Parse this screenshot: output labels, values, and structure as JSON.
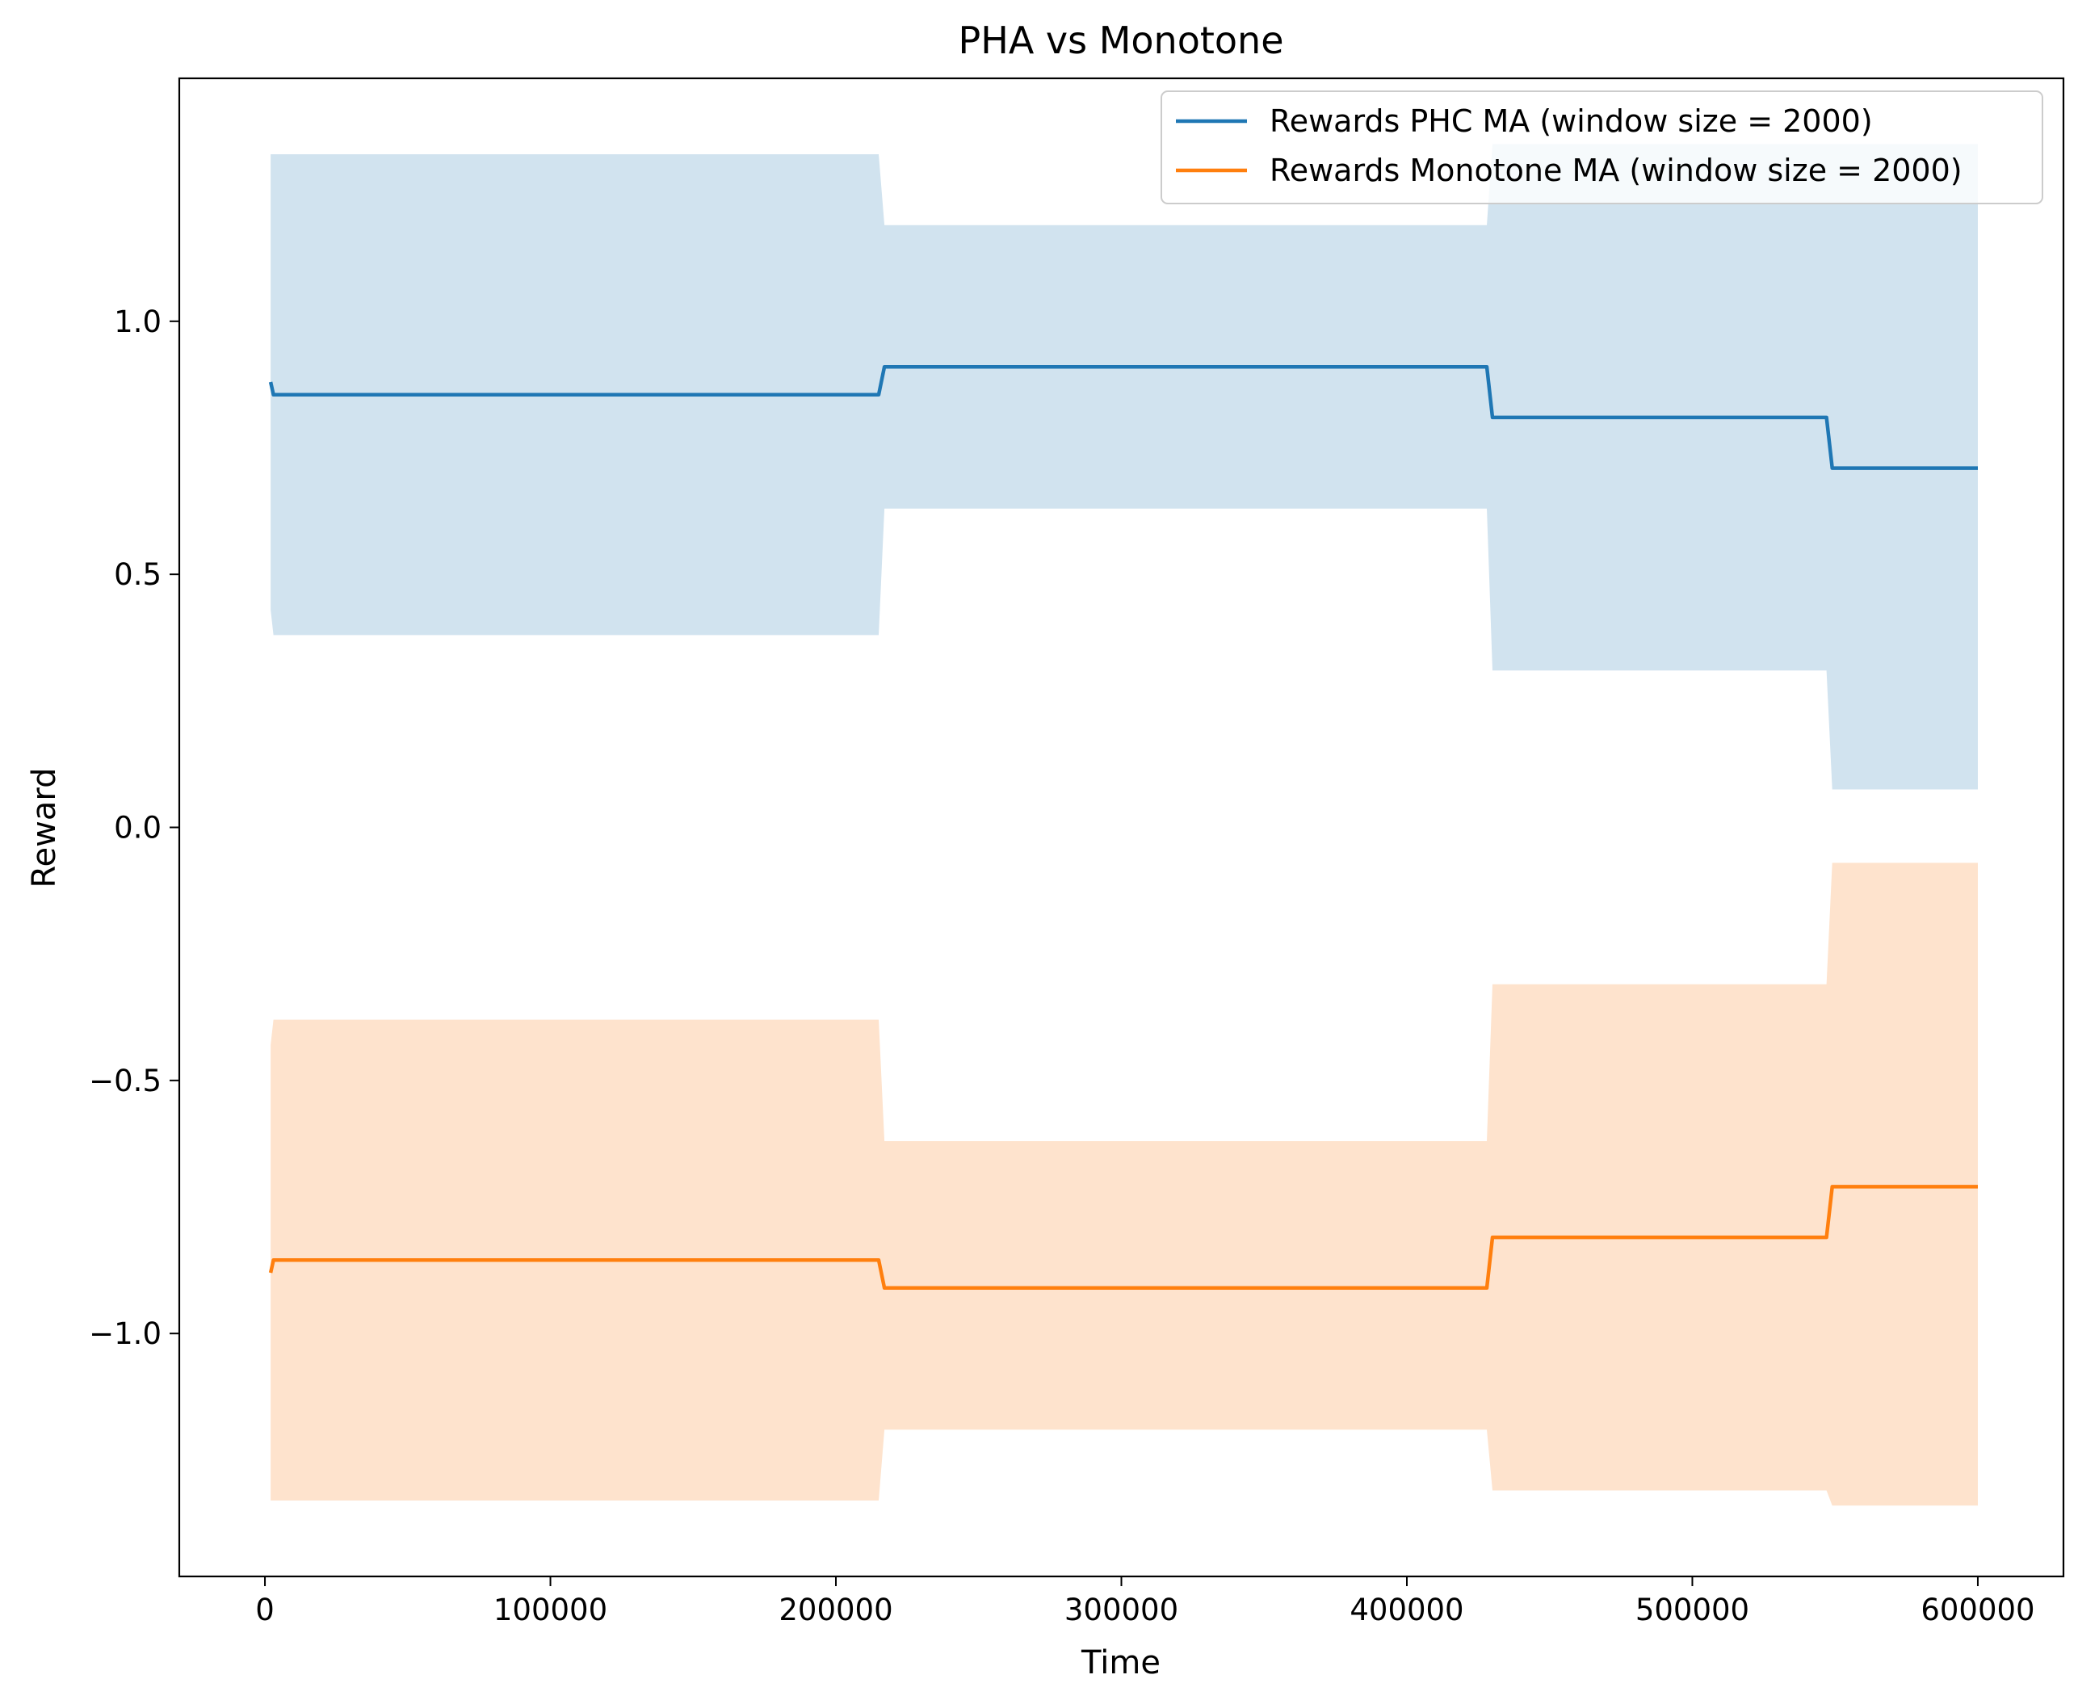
{
  "chart_data": {
    "type": "line",
    "title": "PHA vs Monotone",
    "xlabel": "Time",
    "ylabel": "Reward",
    "xlim": [
      -30000,
      630000
    ],
    "ylim": [
      -1.48,
      1.48
    ],
    "xticks": [
      0,
      100000,
      200000,
      300000,
      400000,
      500000,
      600000
    ],
    "xtick_labels": [
      "0",
      "100000",
      "200000",
      "300000",
      "400000",
      "500000",
      "600000"
    ],
    "yticks": [
      -1.0,
      -0.5,
      0.0,
      0.5,
      1.0
    ],
    "ytick_labels": [
      "−1.0",
      "−0.5",
      "0.0",
      "0.5",
      "1.0"
    ],
    "grid": false,
    "legend_position": "top-right",
    "series": [
      {
        "name": "Rewards PHC MA (window size = 2000)",
        "color": "#1f77b4",
        "band_color": "#d1e3ef",
        "x": [
          2000,
          3000,
          215000,
          217000,
          428000,
          430000,
          547000,
          549000,
          600000
        ],
        "y": [
          0.88,
          0.855,
          0.855,
          0.91,
          0.91,
          0.81,
          0.81,
          0.71,
          0.71
        ],
        "band_x": [
          2000,
          3000,
          215000,
          217000,
          428000,
          430000,
          547000,
          549000,
          600000
        ],
        "band_upper": [
          1.33,
          1.33,
          1.33,
          1.19,
          1.19,
          1.35,
          1.35,
          1.35,
          1.35
        ],
        "band_lower": [
          0.43,
          0.38,
          0.38,
          0.63,
          0.63,
          0.31,
          0.31,
          0.075,
          0.075
        ]
      },
      {
        "name": "Rewards Monotone MA (window size = 2000)",
        "color": "#ff7f0e",
        "band_color": "#fee3cd",
        "x": [
          2000,
          3000,
          215000,
          217000,
          428000,
          430000,
          547000,
          549000,
          600000
        ],
        "y": [
          -0.88,
          -0.855,
          -0.855,
          -0.91,
          -0.91,
          -0.81,
          -0.81,
          -0.71,
          -0.71
        ],
        "band_x": [
          2000,
          3000,
          215000,
          217000,
          428000,
          430000,
          547000,
          549000,
          600000
        ],
        "band_upper": [
          -0.43,
          -0.38,
          -0.38,
          -0.62,
          -0.62,
          -0.31,
          -0.31,
          -0.07,
          -0.07
        ],
        "band_lower": [
          -1.33,
          -1.33,
          -1.33,
          -1.19,
          -1.19,
          -1.31,
          -1.31,
          -1.34,
          -1.34
        ]
      }
    ]
  }
}
